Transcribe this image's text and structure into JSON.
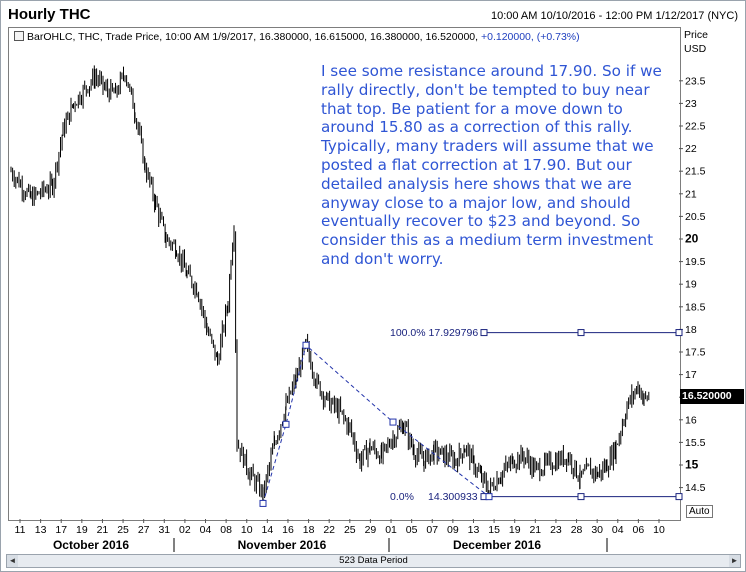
{
  "window": {
    "title": "Hourly THC",
    "range": "10:00 AM 10/10/2016 - 12:00 PM 1/12/2017 (NYC)"
  },
  "info_line": {
    "main": "BarOHLC, THC, Trade Price, 10:00 AM 1/9/2017, 16.380000, 16.615000, 16.380000, 16.520000, ",
    "change": "+0.120000, (+0.73%)"
  },
  "price_header": {
    "line1": "Price",
    "line2": "USD"
  },
  "annotation": {
    "para1": "I see some resistance around 17.90. So if we rally directly, don't be tempted to buy near that top. Be patient for a move down to around 15.80 as a correction of this rally.",
    "para2": "Typically, many traders will assume that we posted a flat correction at 17.90. But our detailed analysis here shows that we are anyway close to a major low, and should eventually recover to $23 and beyond. So consider this as a medium term investment and don't worry."
  },
  "fib": {
    "label_100": "100.0% 17.929796",
    "label_0": "0.0%",
    "value_0": "14.300933"
  },
  "last_price_label": "16.520000",
  "auto_label": "Auto",
  "scrollbar": {
    "label": "523 Data Period",
    "left_icon": "scroll-left-arrow-icon",
    "right_icon": "scroll-right-arrow-icon"
  },
  "chart_data": {
    "type": "ohlc-bar",
    "title": "Hourly THC",
    "ylabel": "Price USD",
    "ylim": [
      14.0,
      24.0
    ],
    "y_ticks": [
      "14.5",
      "15",
      "15.5",
      "16",
      "16.5",
      "17",
      "17.5",
      "18",
      "18.5",
      "19",
      "19.5",
      "20",
      "20.5",
      "21",
      "21.5",
      "22",
      "22.5",
      "23",
      "23.5"
    ],
    "x_ticks": [
      "11",
      "13",
      "17",
      "19",
      "21",
      "25",
      "27",
      "31",
      "02",
      "04",
      "08",
      "10",
      "14",
      "16",
      "18",
      "22",
      "25",
      "29",
      "01",
      "05",
      "07",
      "09",
      "13",
      "15",
      "19",
      "21",
      "23",
      "28",
      "30",
      "04",
      "06",
      "10"
    ],
    "x_months": [
      "October 2016",
      "November 2016",
      "December 2016"
    ],
    "waypoints": [
      {
        "date": "10/10",
        "price": 21.5
      },
      {
        "date": "10/12",
        "price": 20.9
      },
      {
        "date": "10/14",
        "price": 21.2
      },
      {
        "date": "10/17",
        "price": 22.4
      },
      {
        "date": "10/18",
        "price": 23.0
      },
      {
        "date": "10/20",
        "price": 23.6
      },
      {
        "date": "10/21",
        "price": 23.3
      },
      {
        "date": "10/24",
        "price": 23.2
      },
      {
        "date": "10/25",
        "price": 23.7
      },
      {
        "date": "10/26",
        "price": 22.8
      },
      {
        "date": "10/27",
        "price": 21.6
      },
      {
        "date": "10/28",
        "price": 20.8
      },
      {
        "date": "10/31",
        "price": 20.0
      },
      {
        "date": "11/01",
        "price": 19.8
      },
      {
        "date": "11/02",
        "price": 19.2
      },
      {
        "date": "11/03",
        "price": 18.9
      },
      {
        "date": "11/04",
        "price": 18.0
      },
      {
        "date": "11/07",
        "price": 17.3
      },
      {
        "date": "11/08",
        "price": 18.6
      },
      {
        "date": "11/09",
        "price": 19.6
      },
      {
        "date": "11/10",
        "price": 20.3
      },
      {
        "date": "11/10b",
        "price": 15.5
      },
      {
        "date": "11/11",
        "price": 14.8
      },
      {
        "date": "11/14",
        "price": 14.35
      },
      {
        "date": "11/15",
        "price": 15.5
      },
      {
        "date": "11/16",
        "price": 16.3
      },
      {
        "date": "11/17",
        "price": 16.9
      },
      {
        "date": "11/18",
        "price": 17.65
      },
      {
        "date": "11/21",
        "price": 16.8
      },
      {
        "date": "11/22",
        "price": 16.4
      },
      {
        "date": "11/23",
        "price": 16.2
      },
      {
        "date": "11/25",
        "price": 15.8
      },
      {
        "date": "11/28",
        "price": 15.1
      },
      {
        "date": "11/29",
        "price": 15.4
      },
      {
        "date": "11/30",
        "price": 15.2
      },
      {
        "date": "12/01",
        "price": 15.6
      },
      {
        "date": "12/02",
        "price": 15.9
      },
      {
        "date": "12/05",
        "price": 15.3
      },
      {
        "date": "12/06",
        "price": 15.1
      },
      {
        "date": "12/07",
        "price": 15.3
      },
      {
        "date": "12/08",
        "price": 15.2
      },
      {
        "date": "12/09",
        "price": 15.1
      },
      {
        "date": "12/12",
        "price": 15.4
      },
      {
        "date": "12/13",
        "price": 15.0
      },
      {
        "date": "12/14",
        "price": 14.7
      },
      {
        "date": "12/15",
        "price": 14.45
      },
      {
        "date": "12/16",
        "price": 14.8
      },
      {
        "date": "12/19",
        "price": 15.1
      },
      {
        "date": "12/20",
        "price": 15.2
      },
      {
        "date": "12/21",
        "price": 14.9
      },
      {
        "date": "12/22",
        "price": 15.0
      },
      {
        "date": "12/23",
        "price": 15.1
      },
      {
        "date": "12/27",
        "price": 15.2
      },
      {
        "date": "12/28",
        "price": 14.7
      },
      {
        "date": "12/29",
        "price": 14.9
      },
      {
        "date": "12/30",
        "price": 14.8
      },
      {
        "date": "01/03",
        "price": 15.0
      },
      {
        "date": "01/04",
        "price": 15.4
      },
      {
        "date": "01/05",
        "price": 16.3
      },
      {
        "date": "01/06",
        "price": 16.75
      },
      {
        "date": "01/09",
        "price": 16.45
      },
      {
        "date": "01/10",
        "price": 16.52
      }
    ],
    "wave_lines": [
      {
        "points": [
          {
            "date": "11/14",
            "price": 14.15
          },
          {
            "date": "11/16",
            "price": 15.9
          },
          {
            "date": "11/18",
            "price": 17.65
          },
          {
            "date": "12/01",
            "price": 15.95
          },
          {
            "date": "12/15",
            "price": 14.3
          }
        ]
      }
    ],
    "fib_levels": [
      {
        "label": "100.0%",
        "price": 17.929796
      },
      {
        "label": "0.0%",
        "price": 14.300933
      }
    ],
    "last_price": 16.52,
    "grid": false,
    "colors": {
      "bars": "#000000",
      "annotation": "#2f55d4",
      "fib": "#1a237e",
      "wave": "#2233aa"
    }
  }
}
